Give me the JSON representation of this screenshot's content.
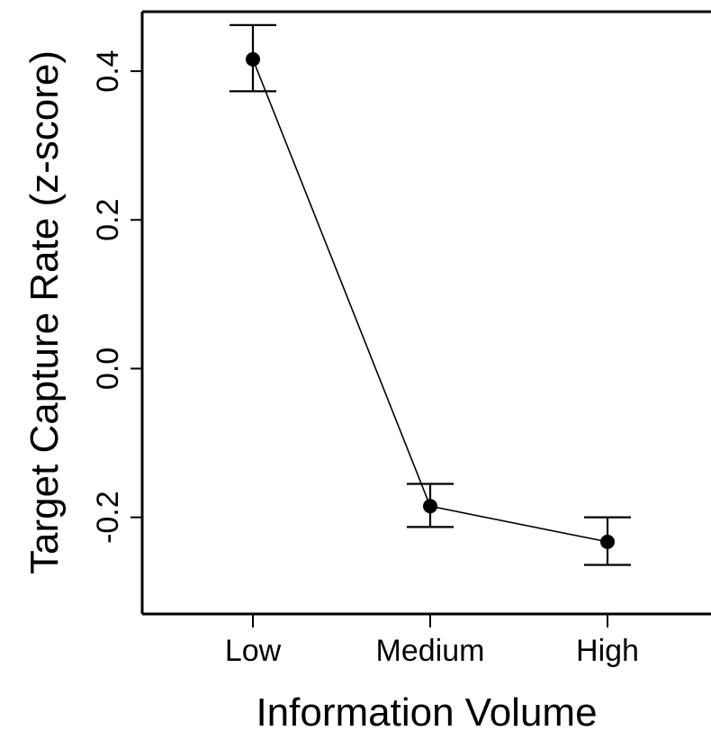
{
  "chart_data": {
    "type": "line",
    "title": "",
    "xlabel": "Information Volume",
    "ylabel": "Target Capture Rate (z-score)",
    "categories": [
      "Low",
      "Medium",
      "High"
    ],
    "series": [
      {
        "values": [
          0.416,
          -0.185,
          -0.233
        ],
        "error_low": [
          0.373,
          -0.213,
          -0.264
        ],
        "error_high": [
          0.462,
          -0.155,
          -0.2
        ]
      }
    ],
    "ylim": [
      -0.33,
      0.48
    ],
    "yticks": [
      -0.2,
      0.0,
      0.2,
      0.4
    ],
    "ytick_labels": [
      "-0.2",
      "0.0",
      "0.2",
      "0.4"
    ],
    "grid": false,
    "box": "open-right",
    "colors": {
      "line": "#000000",
      "marker": "#000000",
      "axis": "#000000"
    }
  }
}
